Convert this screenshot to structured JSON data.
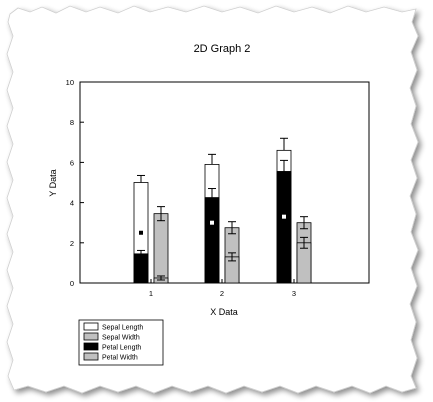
{
  "chart_data": {
    "type": "bar",
    "title": "2D Graph 2",
    "xlabel": "X Data",
    "ylabel": "Y Data",
    "categories": [
      "1",
      "2",
      "3"
    ],
    "ylim": [
      0,
      10
    ],
    "yticks": [
      "0",
      "2",
      "4",
      "6",
      "8",
      "10"
    ],
    "grid": false,
    "legend_position": "bottom-left",
    "series": [
      {
        "name": "Sepal Length",
        "values": [
          5.0,
          5.9,
          6.6
        ],
        "errors": [
          0.35,
          0.5,
          0.6
        ],
        "color": "#ffffff"
      },
      {
        "name": "Sepal Width",
        "values": [
          3.45,
          2.75,
          3.0
        ],
        "errors": [
          0.35,
          0.3,
          0.3
        ],
        "color": "#c0c0c0"
      },
      {
        "name": "Petal Length",
        "values": [
          1.45,
          4.25,
          5.55
        ],
        "errors": [
          0.17,
          0.45,
          0.55
        ],
        "color": "#000000"
      },
      {
        "name": "Petal Width",
        "values": [
          0.25,
          1.3,
          2.0
        ],
        "errors": [
          0.1,
          0.2,
          0.27
        ],
        "color": "#c0c0c0"
      }
    ],
    "mean_markers": [
      2.5,
      3.0,
      3.3
    ]
  }
}
